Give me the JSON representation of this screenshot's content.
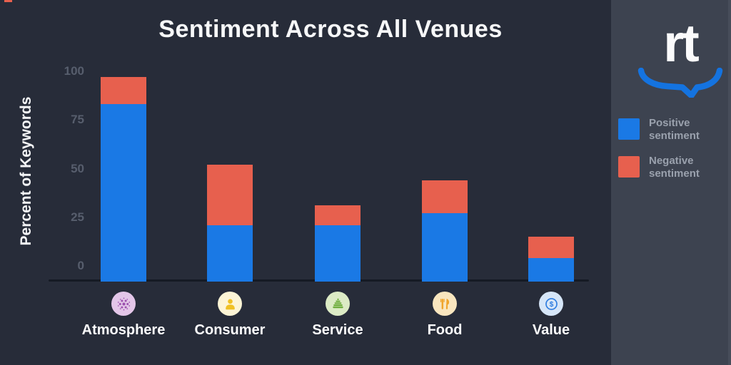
{
  "chart_data": {
    "type": "bar",
    "stacked": true,
    "title": "Sentiment Across All Venues",
    "xlabel": "",
    "ylabel": "Percent of Keywords",
    "categories": [
      "Atmosphere",
      "Consumer",
      "Service",
      "Food",
      "Value"
    ],
    "series": [
      {
        "name": "Positive sentiment",
        "color": "#1a79e5",
        "values": [
          83,
          21,
          21,
          27,
          4
        ]
      },
      {
        "name": "Negative sentiment",
        "color": "#e7604e",
        "values": [
          14,
          31,
          10,
          17,
          11
        ]
      }
    ],
    "y_ticks": [
      0,
      25,
      50,
      75,
      100
    ],
    "ylim": [
      0,
      100
    ],
    "grid": false,
    "legend_position": "right"
  },
  "category_icons": [
    {
      "name": "disco-ball-icon",
      "bg": "#e3c6e8",
      "fg": "#9c4fae"
    },
    {
      "name": "person-icon",
      "bg": "#fdf5d6",
      "fg": "#f0c125"
    },
    {
      "name": "service-bell-icon",
      "bg": "#dcebc5",
      "fg": "#6fae3e"
    },
    {
      "name": "utensils-icon",
      "bg": "#f9e6bf",
      "fg": "#f0a42a"
    },
    {
      "name": "dollar-icon",
      "bg": "#d6e6f8",
      "fg": "#2e7de0"
    }
  ],
  "logo": {
    "text": "rt"
  },
  "colors": {
    "background": "#272c39",
    "panel_background": "#3d4350",
    "axis_line": "#151a24",
    "tick_text": "#575e6d",
    "title_text": "#f7f8f9",
    "legend_text": "#9aa1ad",
    "positive_blue": "#1a79e5",
    "negative_red": "#e7604e",
    "logo_blue": "#1473e0"
  }
}
